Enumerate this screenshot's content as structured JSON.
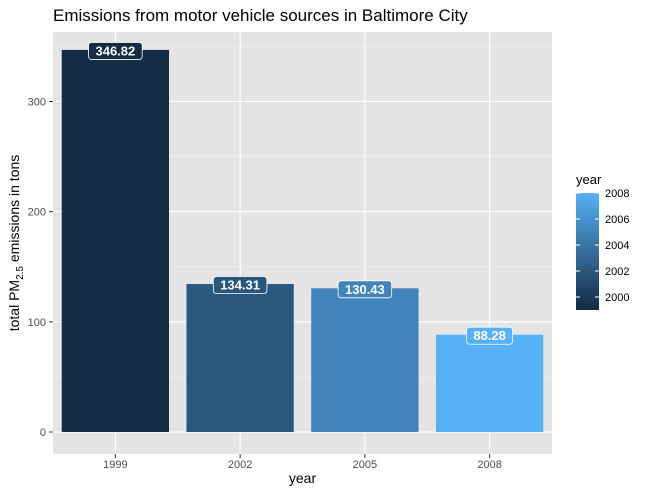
{
  "chart_data": {
    "type": "bar",
    "title": "Emissions from motor vehicle sources in Baltimore City",
    "xlabel": "year",
    "ylabel": {
      "prefix": "total PM",
      "subscript": "2.5",
      "suffix": " emissions in tons"
    },
    "categories": [
      "1999",
      "2002",
      "2005",
      "2008"
    ],
    "x": [
      1999,
      2002,
      2005,
      2008
    ],
    "values": [
      346.82,
      134.31,
      130.43,
      88.28
    ],
    "data_labels": [
      "346.82",
      "134.31",
      "130.43",
      "88.28"
    ],
    "ylim": [
      0,
      365
    ],
    "yticks": [
      0,
      100,
      200,
      300
    ],
    "grid": true,
    "legend": {
      "title": "year",
      "placement": "right",
      "ticks": [
        2000,
        2002,
        2004,
        2006,
        2008
      ],
      "range": [
        1999,
        2008
      ],
      "color_low": "#132B43",
      "color_high": "#56B1F7"
    },
    "colors": {
      "panel_background": "#E5E5E5",
      "grid_major": "#FFFFFF",
      "grid_minor": "#F2F2F2"
    }
  }
}
